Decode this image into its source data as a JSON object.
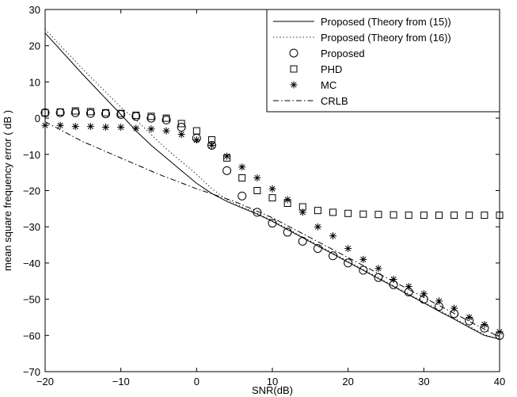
{
  "chart_data": {
    "type": "line",
    "xlabel": "SNR(dB)",
    "ylabel": "mean square frequency error ( dB )",
    "xlim": [
      -20,
      40
    ],
    "ylim": [
      -70,
      30
    ],
    "xticks": [
      -20,
      -10,
      0,
      10,
      20,
      30,
      40
    ],
    "yticks": [
      30,
      20,
      10,
      0,
      -10,
      -20,
      -30,
      -40,
      -50,
      -60,
      -70
    ],
    "grid": false,
    "legend_position": "top-right",
    "series": [
      {
        "name": "Proposed (Theory from (15))",
        "style": "solid",
        "marker": "none",
        "x": [
          -20,
          -15,
          -10,
          -8,
          -6,
          -4,
          -2,
          0,
          2,
          4,
          6,
          8,
          10,
          12,
          14,
          16,
          18,
          20,
          22,
          24,
          26,
          28,
          30,
          32,
          34,
          36,
          38,
          40
        ],
        "y": [
          23.5,
          12,
          1,
          -3.5,
          -7.5,
          -11,
          -14.5,
          -18,
          -20.8,
          -23,
          -24.8,
          -26.5,
          -28.5,
          -30.8,
          -33,
          -35.3,
          -37.5,
          -39.8,
          -42,
          -44.3,
          -46.5,
          -48.8,
          -51,
          -53.3,
          -55.5,
          -57.8,
          -60,
          -61
        ]
      },
      {
        "name": "Proposed (Theory from (16))",
        "style": "dotted",
        "marker": "none",
        "x": [
          -20,
          -15,
          -10,
          -8,
          -6,
          -4,
          -2,
          0,
          2,
          4,
          6,
          8,
          10,
          12,
          14,
          16,
          18,
          20,
          22,
          24,
          26,
          28,
          30,
          32,
          34,
          36,
          38,
          40
        ],
        "y": [
          24.5,
          13.5,
          3,
          -0.5,
          -4.5,
          -8.5,
          -12,
          -15.5,
          -19.5,
          -22.5,
          -24.5,
          -26.3,
          -28.3,
          -30.5,
          -32.8,
          -35,
          -37.3,
          -39.5,
          -41.8,
          -44,
          -46.3,
          -48.5,
          -50.8,
          -53,
          -55.3,
          -57.5,
          -59.8,
          -61
        ]
      },
      {
        "name": "Proposed",
        "style": "none",
        "marker": "circle",
        "x": [
          -20,
          -18,
          -16,
          -14,
          -12,
          -10,
          -8,
          -6,
          -4,
          -2,
          0,
          2,
          4,
          6,
          8,
          10,
          12,
          14,
          16,
          18,
          20,
          22,
          24,
          26,
          28,
          30,
          32,
          34,
          36,
          38,
          40
        ],
        "y": [
          1.5,
          1.5,
          1.5,
          1.3,
          1.2,
          1.0,
          0.5,
          0,
          -0.5,
          -2.5,
          -5.5,
          -7.5,
          -14.5,
          -21.5,
          -26,
          -29,
          -31.5,
          -34,
          -36,
          -38,
          -40,
          -42,
          -44,
          -46,
          -48,
          -50,
          -52,
          -54,
          -56,
          -58,
          -60
        ]
      },
      {
        "name": "PHD",
        "style": "none",
        "marker": "square",
        "x": [
          -20,
          -18,
          -16,
          -14,
          -12,
          -10,
          -8,
          -6,
          -4,
          -2,
          0,
          2,
          4,
          6,
          8,
          10,
          12,
          14,
          16,
          18,
          20,
          22,
          24,
          26,
          28,
          30,
          32,
          34,
          36,
          38,
          40
        ],
        "y": [
          1.5,
          1.7,
          2.0,
          1.8,
          1.5,
          1.3,
          0.8,
          0.5,
          0,
          -1.5,
          -3.5,
          -6,
          -11,
          -16.5,
          -20,
          -22,
          -23.5,
          -24.5,
          -25.5,
          -26,
          -26.3,
          -26.5,
          -26.6,
          -26.7,
          -26.8,
          -26.8,
          -26.8,
          -26.8,
          -26.8,
          -26.8,
          -26.8
        ]
      },
      {
        "name": "MC",
        "style": "none",
        "marker": "star",
        "x": [
          -20,
          -18,
          -16,
          -14,
          -12,
          -10,
          -8,
          -6,
          -4,
          -2,
          0,
          2,
          4,
          6,
          8,
          10,
          12,
          14,
          16,
          18,
          20,
          22,
          24,
          26,
          28,
          30,
          32,
          34,
          36,
          38,
          40
        ],
        "y": [
          -2,
          -2,
          -2.3,
          -2.3,
          -2.5,
          -2.5,
          -2.8,
          -3,
          -3.5,
          -4.5,
          -6,
          -7.5,
          -10.5,
          -13.5,
          -16.5,
          -19.5,
          -22.5,
          -26,
          -30,
          -32.5,
          -36,
          -39,
          -41.5,
          -44.5,
          -46.5,
          -48.5,
          -50.5,
          -52.5,
          -55,
          -57,
          -59
        ]
      },
      {
        "name": "CRLB",
        "style": "dashdot",
        "marker": "none",
        "x": [
          -20,
          -15,
          -10,
          -5,
          0,
          5,
          10,
          15,
          20,
          25,
          30,
          35,
          40
        ],
        "y": [
          -1,
          -6.5,
          -11,
          -15.5,
          -19.5,
          -23,
          -27.5,
          -33,
          -38.5,
          -44,
          -49.5,
          -55,
          -60.5
        ]
      }
    ]
  }
}
